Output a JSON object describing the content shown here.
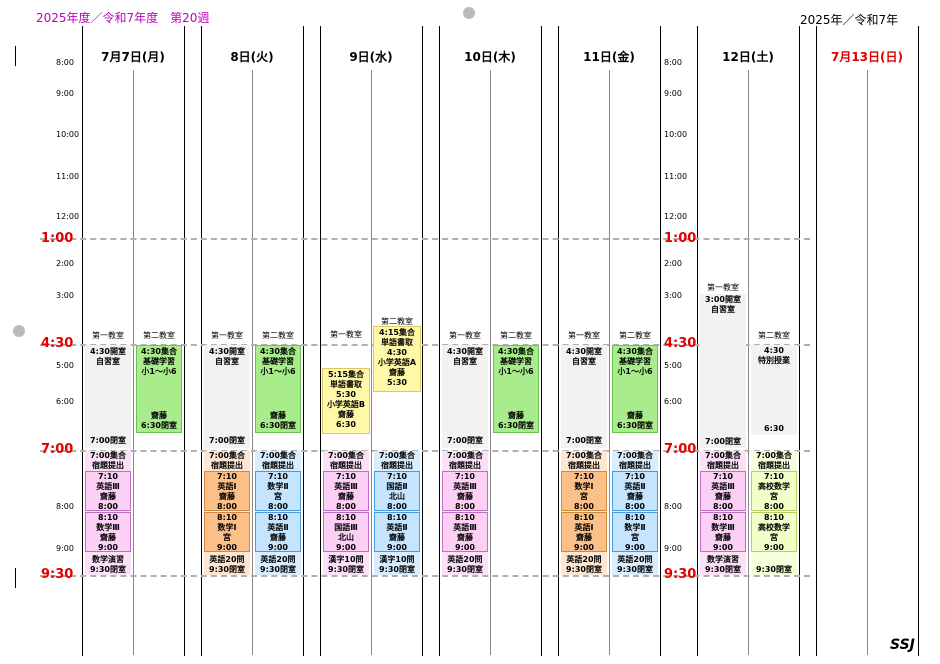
{
  "header": {
    "left": "2025年度／令和7年度　第20週",
    "right": "2025年／令和7年"
  },
  "days": [
    "7月7日(月)",
    "8日(火)",
    "9日(水)",
    "10日(木)",
    "11日(金)",
    "12日(土)",
    "7月13日(日)"
  ],
  "time_labels": [
    "8:00",
    "9:00",
    "10:00",
    "11:00",
    "12:00",
    "1:00",
    "2:00",
    "3:00",
    "4:30",
    "5:00",
    "6:00",
    "7:00",
    "8:00",
    "9:00",
    "9:30"
  ],
  "rooms": {
    "r1": "第一教室",
    "r2": "第二教室"
  },
  "blocks": {
    "mon_r1": [
      "4:30開室",
      "自習室",
      "7:00閉室"
    ],
    "mon_r2": [
      "4:30集合",
      "基礎学習",
      "小1～小6",
      "齋藤",
      "6:30閉室"
    ],
    "tue_r1": [
      "4:30開室",
      "自習室",
      "7:00閉室"
    ],
    "tue_r2": [
      "4:30集合",
      "基礎学習",
      "小1～小6",
      "齋藤",
      "6:30閉室"
    ],
    "wed_r1": [
      "5:15集合",
      "単語書取",
      "5:30",
      "小学英語B",
      "齋藤",
      "6:30"
    ],
    "wed_r2": [
      "4:15集合",
      "単語書取",
      "4:30",
      "小学英語A",
      "齋藤",
      "5:30"
    ],
    "thu_r1": [
      "4:30開室",
      "自習室",
      "7:00閉室"
    ],
    "thu_r2": [
      "4:30集合",
      "基礎学習",
      "小1～小6",
      "齋藤",
      "6:30閉室"
    ],
    "fri_r1": [
      "4:30開室",
      "自習室",
      "7:00閉室"
    ],
    "fri_r2": [
      "4:30集合",
      "基礎学習",
      "小1～小6",
      "齋藤",
      "6:30閉室"
    ],
    "sat_r1": [
      "3:00開室",
      "自習室",
      "7:00閉室"
    ],
    "sat_r2": [
      "4:30",
      "特別授業",
      "6:30"
    ],
    "mon_e1": {
      "head": [
        "7:00集合",
        "宿題提出"
      ],
      "c1": [
        "7:10",
        "英語Ⅲ",
        "齋藤",
        "8:00"
      ],
      "c2": [
        "8:10",
        "数学Ⅲ",
        "齋藤",
        "9:00"
      ],
      "foot": [
        "数学演習",
        "9:30閉室"
      ]
    },
    "tue_e1": {
      "head": [
        "7:00集合",
        "宿題提出"
      ],
      "c1": [
        "7:10",
        "英語Ⅰ",
        "齋藤",
        "8:00"
      ],
      "c2": [
        "8:10",
        "数学Ⅰ",
        "宮",
        "9:00"
      ],
      "foot": [
        "英語20問",
        "9:30閉室"
      ]
    },
    "tue_e2": {
      "head": [
        "7:00集合",
        "宿題提出"
      ],
      "c1": [
        "7:10",
        "数学Ⅱ",
        "宮",
        "8:00"
      ],
      "c2": [
        "8:10",
        "英語Ⅱ",
        "齋藤",
        "9:00"
      ],
      "foot": [
        "英語20問",
        "9:30閉室"
      ]
    },
    "wed_e1": {
      "head": [
        "7:00集合",
        "宿題提出"
      ],
      "c1": [
        "7:10",
        "英語Ⅲ",
        "齋藤",
        "8:00"
      ],
      "c2": [
        "8:10",
        "国語Ⅲ",
        "北山",
        "9:00"
      ],
      "foot": [
        "漢字10問",
        "9:30閉室"
      ]
    },
    "wed_e2": {
      "head": [
        "7:00集合",
        "宿題提出"
      ],
      "c1": [
        "7:10",
        "国語Ⅱ",
        "北山",
        "8:00"
      ],
      "c2": [
        "8:10",
        "英語Ⅱ",
        "齋藤",
        "9:00"
      ],
      "foot": [
        "漢字10問",
        "9:30閉室"
      ]
    },
    "thu_e1": {
      "head": [
        "7:00集合",
        "宿題提出"
      ],
      "c1": [
        "7:10",
        "英語Ⅲ",
        "齋藤",
        "8:00"
      ],
      "c2": [
        "8:10",
        "英語Ⅲ",
        "齋藤",
        "9:00"
      ],
      "foot": [
        "英語20問",
        "9:30閉室"
      ]
    },
    "fri_e1": {
      "head": [
        "7:00集合",
        "宿題提出"
      ],
      "c1": [
        "7:10",
        "数学Ⅰ",
        "宮",
        "8:00"
      ],
      "c2": [
        "8:10",
        "英語Ⅰ",
        "齋藤",
        "9:00"
      ],
      "foot": [
        "英語20問",
        "9:30閉室"
      ]
    },
    "fri_e2": {
      "head": [
        "7:00集合",
        "宿題提出"
      ],
      "c1": [
        "7:10",
        "英語Ⅱ",
        "齋藤",
        "8:00"
      ],
      "c2": [
        "8:10",
        "数学Ⅱ",
        "宮",
        "9:00"
      ],
      "foot": [
        "英語20問",
        "9:30閉室"
      ]
    },
    "sat_e1": {
      "head": [
        "7:00集合",
        "宿題提出"
      ],
      "c1": [
        "7:10",
        "英語Ⅲ",
        "齋藤",
        "8:00"
      ],
      "c2": [
        "8:10",
        "数学Ⅲ",
        "齋藤",
        "9:00"
      ],
      "foot": [
        "数学演習",
        "9:30閉室"
      ]
    },
    "sat_e2": {
      "head": [
        "7:00集合",
        "宿題提出"
      ],
      "c1": [
        "7:10",
        "高校数学",
        "宮",
        "8:00"
      ],
      "c2": [
        "8:10",
        "高校数学",
        "宮",
        "9:00"
      ],
      "foot": [
        "",
        "9:30閉室"
      ]
    }
  },
  "signature": "SSJ",
  "colors": {
    "accent_red": "#e00000",
    "header_magenta": "#c000c0",
    "green": "#a8ec8c",
    "pink": "#fbd0f4",
    "blue": "#c4e4ff",
    "orange": "#fbbf88",
    "yellow": "#fff8a8"
  }
}
